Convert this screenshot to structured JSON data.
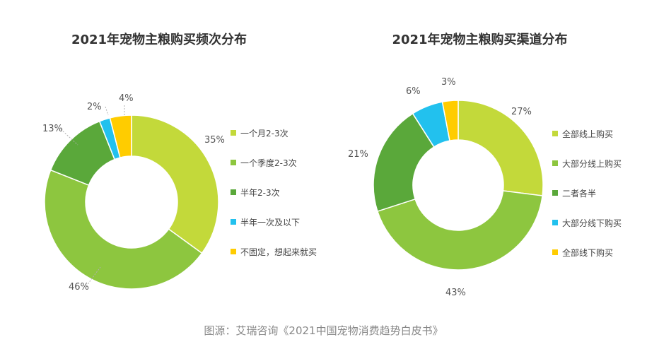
{
  "footer": {
    "source": "图源：艾瑞咨询《2021中国宠物消费趋势白皮书》"
  },
  "chart_data": [
    {
      "type": "pie",
      "donut": true,
      "title": "2021年宠物主粮购买频次分布",
      "unit": "%",
      "legend_position": "right",
      "slices": [
        {
          "label": "一个月2-3次",
          "value": 35,
          "value_label": "35%",
          "color": "#c3d93a"
        },
        {
          "label": "一个季度2-3次",
          "value": 46,
          "value_label": "46%",
          "color": "#8dc63f"
        },
        {
          "label": "半年2-3次",
          "value": 13,
          "value_label": "13%",
          "color": "#5aa83a"
        },
        {
          "label": "半年一次及以下",
          "value": 2,
          "value_label": "2%",
          "color": "#22c1ee"
        },
        {
          "label": "不固定，想起来就买",
          "value": 4,
          "value_label": "4%",
          "color": "#ffcc00"
        }
      ]
    },
    {
      "type": "pie",
      "donut": true,
      "title": "2021年宠物主粮购买渠道分布",
      "unit": "%",
      "legend_position": "right",
      "slices": [
        {
          "label": "全部线上购买",
          "value": 27,
          "value_label": "27%",
          "color": "#c3d93a"
        },
        {
          "label": "大部分线上购买",
          "value": 43,
          "value_label": "43%",
          "color": "#8dc63f"
        },
        {
          "label": "二者各半",
          "value": 21,
          "value_label": "21%",
          "color": "#5aa83a"
        },
        {
          "label": "大部分线下购买",
          "value": 6,
          "value_label": "6%",
          "color": "#22c1ee"
        },
        {
          "label": "全部线下购买",
          "value": 3,
          "value_label": "3%",
          "color": "#ffcc00"
        }
      ]
    }
  ]
}
